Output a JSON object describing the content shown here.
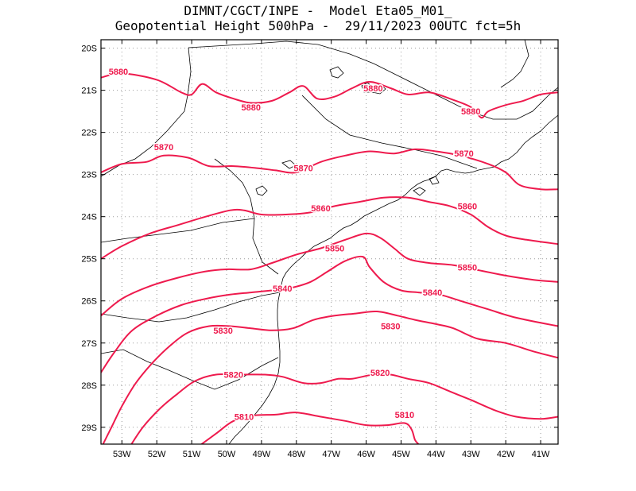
{
  "title": {
    "line1": "DIMNT/CGCT/INPE -  Model Eta05_M01_",
    "line2": "Geopotential Height 500hPa -  29/11/2023 00UTC fct=5h"
  },
  "colors": {
    "contour": "#ee1a4d",
    "coast": "#000000",
    "grid": "#9a9a9a",
    "frame": "#000000"
  },
  "chart_data": {
    "type": "contour",
    "title": "Geopotential Height 500hPa",
    "xlabel": "",
    "ylabel": "",
    "xlim": [
      -53.6,
      -40.5
    ],
    "ylim": [
      -29.4,
      -19.8
    ],
    "grid": true,
    "x_ticks": [
      -53,
      -52,
      -51,
      -50,
      -49,
      -48,
      -47,
      -46,
      -45,
      -44,
      -43,
      -42,
      -41
    ],
    "x_tick_labels": [
      "53W",
      "52W",
      "51W",
      "50W",
      "49W",
      "48W",
      "47W",
      "46W",
      "45W",
      "44W",
      "43W",
      "42W",
      "41W"
    ],
    "y_ticks": [
      -20,
      -21,
      -22,
      -23,
      -24,
      -25,
      -26,
      -27,
      -28,
      -29
    ],
    "y_tick_labels": [
      "20S",
      "21S",
      "22S",
      "23S",
      "24S",
      "25S",
      "26S",
      "27S",
      "28S",
      "29S"
    ],
    "series": [
      {
        "name": "5880",
        "label_at": [
          [
            -53.1,
            -20.55
          ],
          [
            -49.3,
            -21.4
          ],
          [
            -45.8,
            -20.95
          ],
          [
            -43.0,
            -21.5
          ]
        ],
        "points": [
          [
            -53.6,
            -20.7
          ],
          [
            -53.0,
            -20.6
          ],
          [
            -52.0,
            -20.75
          ],
          [
            -51.3,
            -21.05
          ],
          [
            -51.0,
            -21.1
          ],
          [
            -50.7,
            -20.85
          ],
          [
            -50.3,
            -21.05
          ],
          [
            -49.8,
            -21.2
          ],
          [
            -49.3,
            -21.3
          ],
          [
            -48.7,
            -21.25
          ],
          [
            -48.2,
            -21.05
          ],
          [
            -47.8,
            -20.9
          ],
          [
            -47.4,
            -21.2
          ],
          [
            -46.9,
            -21.15
          ],
          [
            -46.4,
            -20.95
          ],
          [
            -45.9,
            -20.8
          ],
          [
            -45.3,
            -20.95
          ],
          [
            -44.8,
            -21.1
          ],
          [
            -44.2,
            -21.05
          ],
          [
            -43.6,
            -21.2
          ],
          [
            -43.0,
            -21.4
          ],
          [
            -42.7,
            -21.65
          ],
          [
            -42.5,
            -21.5
          ],
          [
            -42.0,
            -21.35
          ],
          [
            -41.5,
            -21.25
          ],
          [
            -41.0,
            -21.1
          ],
          [
            -40.5,
            -21.05
          ]
        ]
      },
      {
        "name": "5870",
        "label_at": [
          [
            -51.8,
            -22.35
          ],
          [
            -47.8,
            -22.85
          ],
          [
            -43.2,
            -22.5
          ]
        ],
        "points": [
          [
            -53.6,
            -22.95
          ],
          [
            -53.0,
            -22.75
          ],
          [
            -52.3,
            -22.7
          ],
          [
            -51.8,
            -22.55
          ],
          [
            -51.1,
            -22.6
          ],
          [
            -50.5,
            -22.8
          ],
          [
            -49.8,
            -22.8
          ],
          [
            -49.1,
            -22.85
          ],
          [
            -48.6,
            -22.9
          ],
          [
            -48.0,
            -22.95
          ],
          [
            -47.3,
            -22.7
          ],
          [
            -46.6,
            -22.55
          ],
          [
            -45.9,
            -22.45
          ],
          [
            -45.2,
            -22.5
          ],
          [
            -44.6,
            -22.4
          ],
          [
            -44.0,
            -22.45
          ],
          [
            -43.3,
            -22.55
          ],
          [
            -42.5,
            -22.75
          ],
          [
            -42.0,
            -22.95
          ],
          [
            -41.6,
            -23.25
          ],
          [
            -41.0,
            -23.35
          ],
          [
            -40.5,
            -23.35
          ]
        ]
      },
      {
        "name": "5860",
        "label_at": [
          [
            -47.3,
            -23.8
          ],
          [
            -43.1,
            -23.75
          ]
        ],
        "points": [
          [
            -53.6,
            -25.0
          ],
          [
            -53.0,
            -24.7
          ],
          [
            -52.2,
            -24.4
          ],
          [
            -51.4,
            -24.2
          ],
          [
            -50.6,
            -24.0
          ],
          [
            -49.9,
            -23.85
          ],
          [
            -49.5,
            -23.85
          ],
          [
            -49.0,
            -23.95
          ],
          [
            -48.3,
            -23.95
          ],
          [
            -47.6,
            -23.9
          ],
          [
            -46.9,
            -23.75
          ],
          [
            -46.2,
            -23.65
          ],
          [
            -45.5,
            -23.55
          ],
          [
            -44.8,
            -23.55
          ],
          [
            -44.2,
            -23.65
          ],
          [
            -43.6,
            -23.75
          ],
          [
            -43.0,
            -23.95
          ],
          [
            -42.5,
            -24.25
          ],
          [
            -42.0,
            -24.45
          ],
          [
            -41.4,
            -24.55
          ],
          [
            -40.5,
            -24.65
          ]
        ]
      },
      {
        "name": "5850",
        "label_at": [
          [
            -46.9,
            -24.75
          ],
          [
            -43.1,
            -25.2
          ]
        ],
        "points": [
          [
            -53.6,
            -26.35
          ],
          [
            -53.0,
            -25.95
          ],
          [
            -52.2,
            -25.65
          ],
          [
            -51.4,
            -25.45
          ],
          [
            -50.6,
            -25.3
          ],
          [
            -50.0,
            -25.25
          ],
          [
            -49.3,
            -25.25
          ],
          [
            -48.7,
            -25.1
          ],
          [
            -48.0,
            -24.9
          ],
          [
            -47.3,
            -24.75
          ],
          [
            -46.6,
            -24.55
          ],
          [
            -46.0,
            -24.4
          ],
          [
            -45.6,
            -24.5
          ],
          [
            -45.2,
            -24.75
          ],
          [
            -44.8,
            -25.0
          ],
          [
            -44.2,
            -25.1
          ],
          [
            -43.5,
            -25.15
          ],
          [
            -42.9,
            -25.25
          ],
          [
            -42.0,
            -25.4
          ],
          [
            -41.2,
            -25.5
          ],
          [
            -40.5,
            -25.55
          ]
        ]
      },
      {
        "name": "5840",
        "label_at": [
          [
            -48.4,
            -25.7
          ],
          [
            -44.1,
            -25.8
          ]
        ],
        "points": [
          [
            -53.6,
            -27.7
          ],
          [
            -53.2,
            -27.2
          ],
          [
            -52.7,
            -26.7
          ],
          [
            -52.0,
            -26.35
          ],
          [
            -51.3,
            -26.1
          ],
          [
            -50.6,
            -25.95
          ],
          [
            -49.9,
            -25.85
          ],
          [
            -49.3,
            -25.8
          ],
          [
            -48.7,
            -25.75
          ],
          [
            -48.2,
            -25.7
          ],
          [
            -47.6,
            -25.55
          ],
          [
            -47.1,
            -25.3
          ],
          [
            -46.6,
            -25.05
          ],
          [
            -46.1,
            -24.95
          ],
          [
            -45.9,
            -25.2
          ],
          [
            -45.5,
            -25.55
          ],
          [
            -45.0,
            -25.75
          ],
          [
            -44.5,
            -25.8
          ],
          [
            -43.9,
            -25.85
          ],
          [
            -43.3,
            -26.0
          ],
          [
            -42.5,
            -26.2
          ],
          [
            -41.7,
            -26.4
          ],
          [
            -40.5,
            -26.6
          ]
        ]
      },
      {
        "name": "5830",
        "label_at": [
          [
            -50.1,
            -26.7
          ],
          [
            -45.3,
            -26.6
          ]
        ],
        "points": [
          [
            -53.6,
            -29.5
          ],
          [
            -53.3,
            -29.0
          ],
          [
            -53.0,
            -28.5
          ],
          [
            -52.6,
            -27.95
          ],
          [
            -52.1,
            -27.45
          ],
          [
            -51.6,
            -27.05
          ],
          [
            -51.1,
            -26.75
          ],
          [
            -50.5,
            -26.6
          ],
          [
            -49.9,
            -26.6
          ],
          [
            -49.3,
            -26.65
          ],
          [
            -48.7,
            -26.7
          ],
          [
            -48.1,
            -26.65
          ],
          [
            -47.5,
            -26.45
          ],
          [
            -46.9,
            -26.35
          ],
          [
            -46.3,
            -26.3
          ],
          [
            -45.7,
            -26.25
          ],
          [
            -45.1,
            -26.35
          ],
          [
            -44.6,
            -26.45
          ],
          [
            -44.0,
            -26.55
          ],
          [
            -43.5,
            -26.65
          ],
          [
            -42.8,
            -26.9
          ],
          [
            -42.0,
            -27.0
          ],
          [
            -41.2,
            -27.2
          ],
          [
            -40.5,
            -27.35
          ]
        ]
      },
      {
        "name": "5820",
        "label_at": [
          [
            -49.8,
            -27.75
          ],
          [
            -45.6,
            -27.7
          ]
        ],
        "points": [
          [
            -52.8,
            -29.5
          ],
          [
            -52.4,
            -29.0
          ],
          [
            -51.9,
            -28.55
          ],
          [
            -51.4,
            -28.2
          ],
          [
            -50.9,
            -27.9
          ],
          [
            -50.3,
            -27.75
          ],
          [
            -49.6,
            -27.75
          ],
          [
            -48.9,
            -27.75
          ],
          [
            -48.4,
            -27.8
          ],
          [
            -47.8,
            -27.95
          ],
          [
            -47.3,
            -27.95
          ],
          [
            -46.8,
            -27.85
          ],
          [
            -46.4,
            -27.85
          ],
          [
            -45.8,
            -27.75
          ],
          [
            -45.3,
            -27.75
          ],
          [
            -44.8,
            -27.85
          ],
          [
            -44.2,
            -27.95
          ],
          [
            -43.6,
            -28.15
          ],
          [
            -43.0,
            -28.35
          ],
          [
            -42.3,
            -28.6
          ],
          [
            -41.7,
            -28.75
          ],
          [
            -41.0,
            -28.8
          ],
          [
            -40.5,
            -28.75
          ]
        ]
      },
      {
        "name": "5810",
        "label_at": [
          [
            -49.5,
            -28.75
          ],
          [
            -44.9,
            -28.7
          ]
        ],
        "points": [
          [
            -50.8,
            -29.45
          ],
          [
            -50.3,
            -29.15
          ],
          [
            -49.8,
            -28.85
          ],
          [
            -49.2,
            -28.72
          ],
          [
            -48.6,
            -28.7
          ],
          [
            -48.0,
            -28.65
          ],
          [
            -47.3,
            -28.75
          ],
          [
            -46.6,
            -28.85
          ],
          [
            -46.0,
            -28.95
          ],
          [
            -45.4,
            -28.95
          ],
          [
            -44.9,
            -28.9
          ],
          [
            -44.7,
            -29.05
          ],
          [
            -44.6,
            -29.3
          ],
          [
            -44.5,
            -29.4
          ]
        ]
      }
    ]
  }
}
